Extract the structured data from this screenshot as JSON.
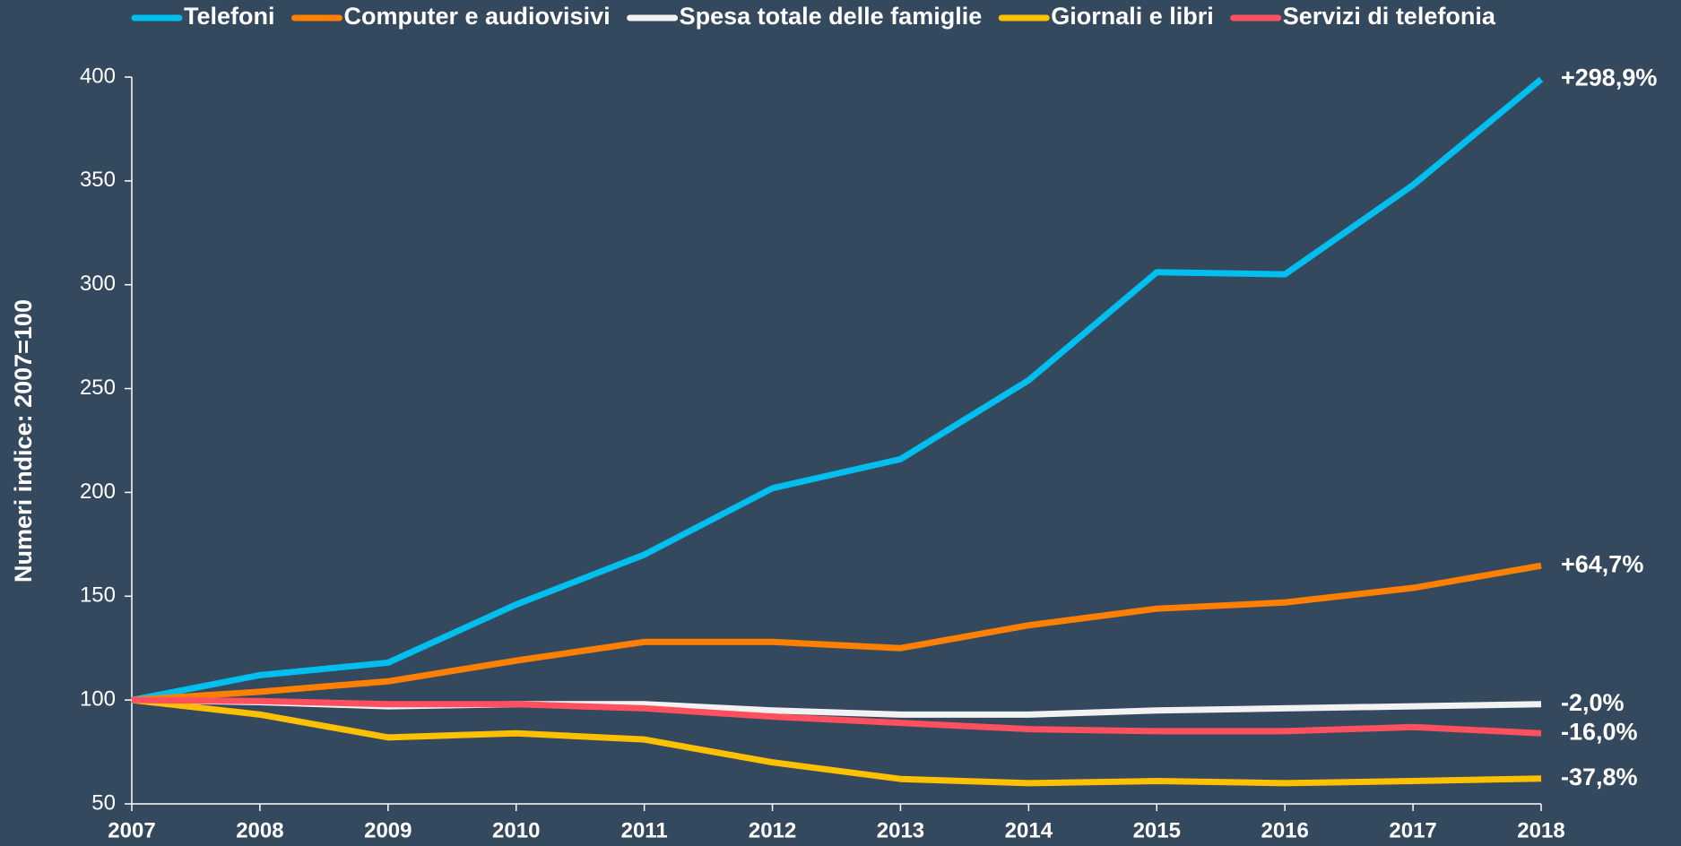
{
  "chart_data": {
    "type": "line",
    "y_label": "Numeri indice: 2007=100",
    "categories": [
      "2007",
      "2008",
      "2009",
      "2010",
      "2011",
      "2012",
      "2013",
      "2014",
      "2015",
      "2016",
      "2017",
      "2018"
    ],
    "series": [
      {
        "name": "Telefoni",
        "color": "#00bfee",
        "values": [
          100,
          112,
          118,
          146,
          170,
          202,
          216,
          254,
          306,
          305,
          348,
          398.9
        ],
        "end_label": "+298,9%"
      },
      {
        "name": "Computer e audiovisivi",
        "color": "#ff8000",
        "values": [
          100,
          104,
          109,
          119,
          128,
          128,
          125,
          136,
          144,
          147,
          154,
          164.7
        ],
        "end_label": "+64,7%"
      },
      {
        "name": "Spesa totale delle famiglie",
        "color": "#f2f2f2",
        "values": [
          100,
          99,
          97,
          98,
          98,
          95,
          93,
          93,
          95,
          96,
          97,
          98
        ],
        "end_label": "-2,0%"
      },
      {
        "name": "Giornali e libri",
        "color": "#ffc000",
        "values": [
          100,
          93,
          82,
          84,
          81,
          70,
          62,
          60,
          61,
          60,
          61,
          62.2
        ],
        "end_label": "-37,8%"
      },
      {
        "name": "Servizi di telefonia",
        "color": "#ff5060",
        "values": [
          100,
          99.5,
          98,
          98,
          96,
          92,
          89,
          86,
          85,
          85,
          87,
          84
        ],
        "end_label": "-16,0%"
      }
    ],
    "ylim": [
      50,
      400
    ],
    "yticks": [
      50,
      100,
      150,
      200,
      250,
      300,
      350,
      400
    ],
    "grid": false,
    "legend": "top"
  }
}
